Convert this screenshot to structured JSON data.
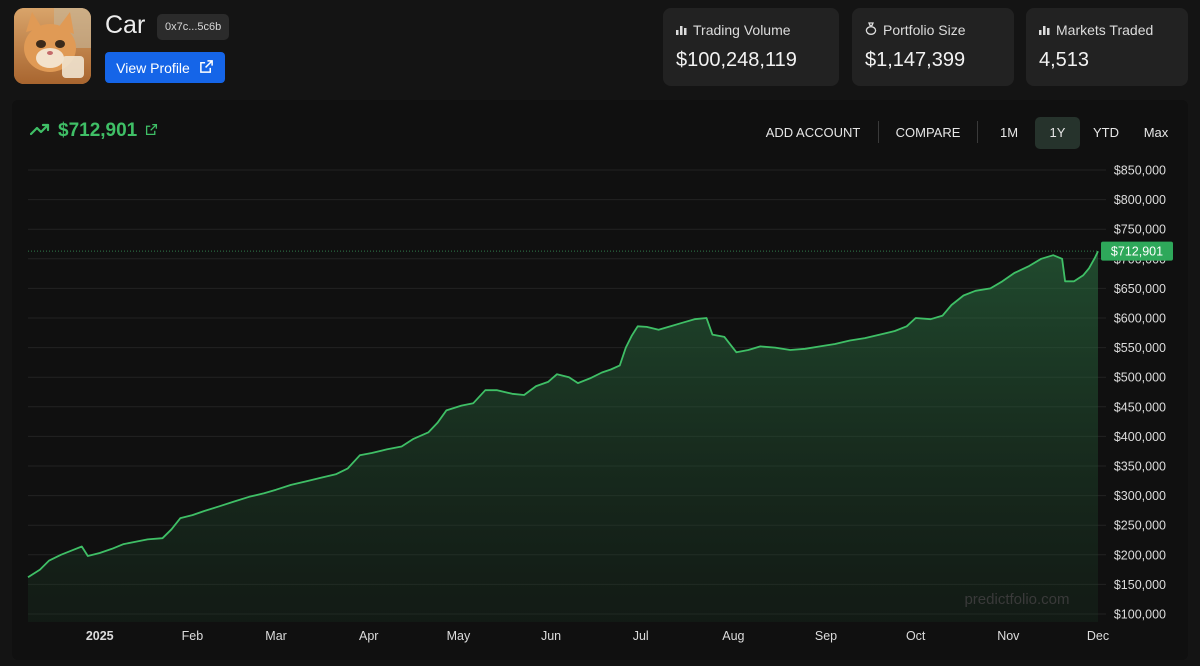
{
  "profile": {
    "name": "Car",
    "address": "0x7c...5c6b",
    "view_profile_label": "View Profile"
  },
  "stats": [
    {
      "label": "Trading Volume",
      "value": "$100,248,119",
      "icon": "bar-chart-icon"
    },
    {
      "label": "Portfolio Size",
      "value": "$1,147,399",
      "icon": "money-bag-icon"
    },
    {
      "label": "Markets Traded",
      "value": "4,513",
      "icon": "bar-chart-icon"
    }
  ],
  "portfolio": {
    "current_value": "$712,901",
    "trend_icon": "trending-up-icon"
  },
  "toolbar": {
    "add_account": "ADD ACCOUNT",
    "compare": "COMPARE",
    "ranges": [
      "1M",
      "1Y",
      "YTD",
      "Max"
    ],
    "active_range": "1Y"
  },
  "colors": {
    "accent_green": "#3fbf66",
    "button_blue": "#1565e8"
  },
  "watermark": "predictfolio.com",
  "chart_data": {
    "type": "area",
    "y_axis_position": "right",
    "ylim": [
      100000,
      850000
    ],
    "y_ticks": [
      850000,
      800000,
      750000,
      700000,
      650000,
      600000,
      550000,
      500000,
      450000,
      400000,
      350000,
      300000,
      250000,
      200000,
      150000,
      100000
    ],
    "y_tick_labels": [
      "$850,000",
      "$800,000",
      "$750,000",
      "$700,000",
      "$650,000",
      "$600,000",
      "$550,000",
      "$500,000",
      "$450,000",
      "$400,000",
      "$350,000",
      "$300,000",
      "$250,000",
      "$200,000",
      "$150,000",
      "$100,000"
    ],
    "x_ticks": [
      {
        "date": "2025-01-01",
        "label": "2025"
      },
      {
        "date": "2025-02-01",
        "label": "Feb"
      },
      {
        "date": "2025-03-01",
        "label": "Mar"
      },
      {
        "date": "2025-04-01",
        "label": "Apr"
      },
      {
        "date": "2025-05-01",
        "label": "May"
      },
      {
        "date": "2025-06-01",
        "label": "Jun"
      },
      {
        "date": "2025-07-01",
        "label": "Jul"
      },
      {
        "date": "2025-08-01",
        "label": "Aug"
      },
      {
        "date": "2025-09-01",
        "label": "Sep"
      },
      {
        "date": "2025-10-01",
        "label": "Oct"
      },
      {
        "date": "2025-11-01",
        "label": "Nov"
      },
      {
        "date": "2025-12-01",
        "label": "Dec"
      }
    ],
    "xlim": [
      "2024-12-08",
      "2025-12-01"
    ],
    "last_value": 712901,
    "last_value_label": "$712,901",
    "series": [
      {
        "points": [
          [
            "2024-12-08",
            162000
          ],
          [
            "2024-12-12",
            175000
          ],
          [
            "2024-12-15",
            190000
          ],
          [
            "2024-12-19",
            200000
          ],
          [
            "2024-12-23",
            208000
          ],
          [
            "2024-12-26",
            214000
          ],
          [
            "2024-12-28",
            198000
          ],
          [
            "2025-01-01",
            203000
          ],
          [
            "2025-01-05",
            210000
          ],
          [
            "2025-01-09",
            218000
          ],
          [
            "2025-01-13",
            222000
          ],
          [
            "2025-01-17",
            226000
          ],
          [
            "2025-01-22",
            228000
          ],
          [
            "2025-01-25",
            243000
          ],
          [
            "2025-01-28",
            262000
          ],
          [
            "2025-02-01",
            267000
          ],
          [
            "2025-02-05",
            274000
          ],
          [
            "2025-02-10",
            282000
          ],
          [
            "2025-02-15",
            290000
          ],
          [
            "2025-02-20",
            298000
          ],
          [
            "2025-02-25",
            304000
          ],
          [
            "2025-03-01",
            310000
          ],
          [
            "2025-03-06",
            318000
          ],
          [
            "2025-03-11",
            324000
          ],
          [
            "2025-03-16",
            330000
          ],
          [
            "2025-03-21",
            336000
          ],
          [
            "2025-03-25",
            346000
          ],
          [
            "2025-03-29",
            368000
          ],
          [
            "2025-04-02",
            372000
          ],
          [
            "2025-04-07",
            378000
          ],
          [
            "2025-04-12",
            383000
          ],
          [
            "2025-04-16",
            396000
          ],
          [
            "2025-04-21",
            407000
          ],
          [
            "2025-04-24",
            423000
          ],
          [
            "2025-04-27",
            444000
          ],
          [
            "2025-05-02",
            452000
          ],
          [
            "2025-05-06",
            456000
          ],
          [
            "2025-05-10",
            478000
          ],
          [
            "2025-05-14",
            478000
          ],
          [
            "2025-05-19",
            472000
          ],
          [
            "2025-05-23",
            470000
          ],
          [
            "2025-05-27",
            485000
          ],
          [
            "2025-05-31",
            492000
          ],
          [
            "2025-06-03",
            505000
          ],
          [
            "2025-06-07",
            500000
          ],
          [
            "2025-06-10",
            490000
          ],
          [
            "2025-06-14",
            498000
          ],
          [
            "2025-06-18",
            508000
          ],
          [
            "2025-06-21",
            513000
          ],
          [
            "2025-06-24",
            520000
          ],
          [
            "2025-06-26",
            550000
          ],
          [
            "2025-06-28",
            570000
          ],
          [
            "2025-06-30",
            586000
          ],
          [
            "2025-07-03",
            585000
          ],
          [
            "2025-07-07",
            580000
          ],
          [
            "2025-07-11",
            586000
          ],
          [
            "2025-07-15",
            592000
          ],
          [
            "2025-07-19",
            598000
          ],
          [
            "2025-07-23",
            600000
          ],
          [
            "2025-07-25",
            572000
          ],
          [
            "2025-07-29",
            568000
          ],
          [
            "2025-08-02",
            542000
          ],
          [
            "2025-08-06",
            546000
          ],
          [
            "2025-08-10",
            552000
          ],
          [
            "2025-08-15",
            550000
          ],
          [
            "2025-08-20",
            546000
          ],
          [
            "2025-08-25",
            548000
          ],
          [
            "2025-08-30",
            552000
          ],
          [
            "2025-09-04",
            556000
          ],
          [
            "2025-09-09",
            562000
          ],
          [
            "2025-09-14",
            566000
          ],
          [
            "2025-09-19",
            572000
          ],
          [
            "2025-09-24",
            578000
          ],
          [
            "2025-09-28",
            586000
          ],
          [
            "2025-10-01",
            600000
          ],
          [
            "2025-10-06",
            598000
          ],
          [
            "2025-10-10",
            604000
          ],
          [
            "2025-10-13",
            622000
          ],
          [
            "2025-10-17",
            638000
          ],
          [
            "2025-10-21",
            646000
          ],
          [
            "2025-10-26",
            650000
          ],
          [
            "2025-10-30",
            662000
          ],
          [
            "2025-11-03",
            676000
          ],
          [
            "2025-11-08",
            688000
          ],
          [
            "2025-11-12",
            700000
          ],
          [
            "2025-11-16",
            706000
          ],
          [
            "2025-11-19",
            700000
          ],
          [
            "2025-11-20",
            662000
          ],
          [
            "2025-11-23",
            662000
          ],
          [
            "2025-11-26",
            672000
          ],
          [
            "2025-11-28",
            684000
          ],
          [
            "2025-11-30",
            702000
          ],
          [
            "2025-12-01",
            712901
          ]
        ]
      }
    ]
  }
}
